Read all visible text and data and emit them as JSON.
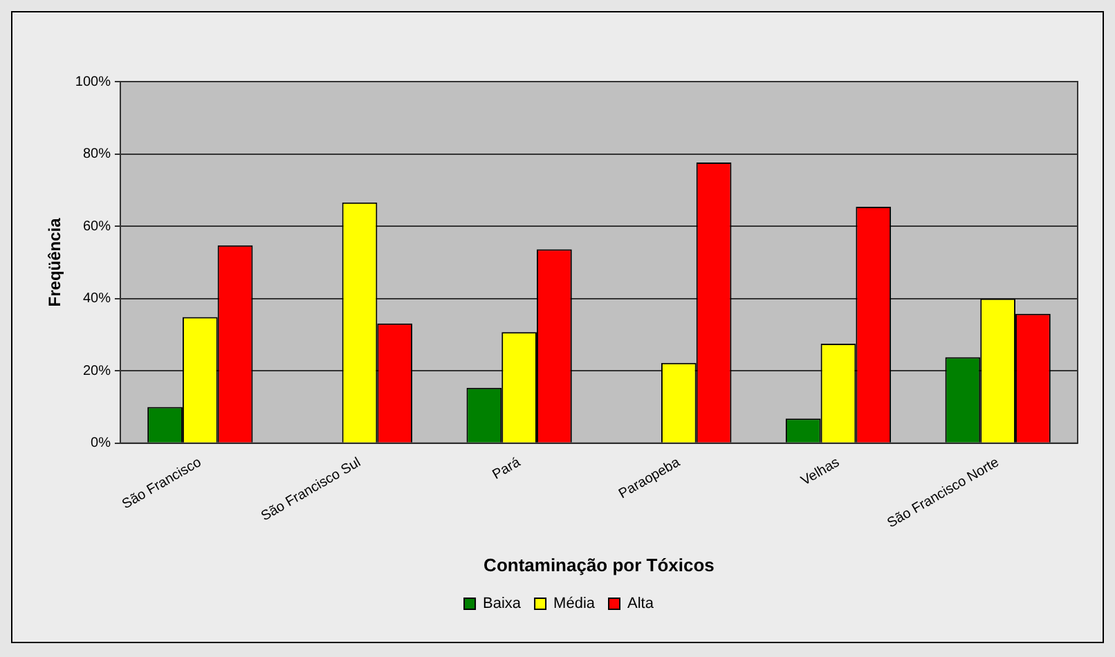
{
  "chart_data": {
    "type": "bar",
    "xlabel": "Contaminação por Tóxicos",
    "ylabel": "Freqüência",
    "categories": [
      "São Francisco",
      "São Francisco Sul",
      "Pará",
      "Paraopeba",
      "Velhas",
      "São Francisco Norte"
    ],
    "series": [
      {
        "name": "Baixa",
        "color": "#008000",
        "values": [
          10,
          0,
          15.3,
          0,
          6.8,
          23.8
        ]
      },
      {
        "name": "Média",
        "color": "#ffff00",
        "values": [
          34.9,
          66.6,
          30.7,
          22.2,
          27.5,
          40
        ]
      },
      {
        "name": "Alta",
        "color": "#ff0000",
        "values": [
          54.7,
          33.1,
          53.6,
          77.6,
          65.4,
          35.8
        ]
      }
    ],
    "ylim": [
      0,
      100
    ],
    "yticks": [
      {
        "value": 0,
        "label": "0%"
      },
      {
        "value": 20,
        "label": "20%"
      },
      {
        "value": 40,
        "label": "40%"
      },
      {
        "value": 60,
        "label": "60%"
      },
      {
        "value": 80,
        "label": "80%"
      },
      {
        "value": 100,
        "label": "100%"
      }
    ],
    "grid": "y",
    "legend": "bottom"
  }
}
